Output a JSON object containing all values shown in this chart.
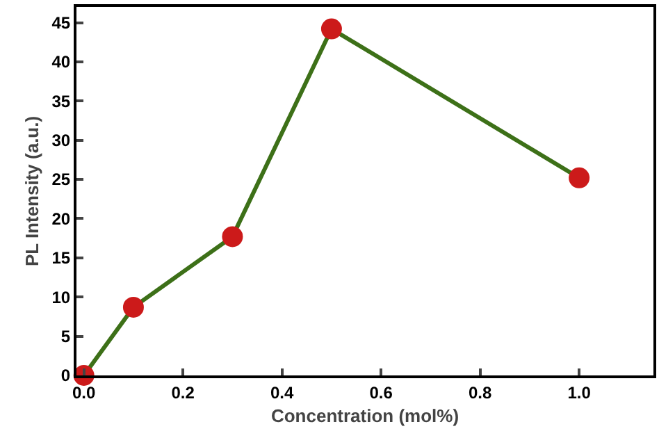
{
  "chart_data": {
    "type": "line",
    "xlabel": "Concentration (mol%)",
    "ylabel": "PL Intensity (a.u.)",
    "x": [
      0,
      0.1,
      0.3,
      0.5,
      1.0
    ],
    "series": [
      {
        "color": "#3d7018",
        "colors": [
          "#cc1a1a",
          "#cc1a1a",
          "#cc1a1a",
          "#cc1a1a",
          "#cc1a1a"
        ],
        "values": [
          0,
          8.7,
          17.7,
          44.2,
          25.2
        ]
      }
    ],
    "xlim": [
      -0.015,
      1.15
    ],
    "xticks": [
      {
        "value": 0,
        "label": "0.0"
      },
      0.2,
      0.4,
      0.6,
      0.8,
      {
        "value": 1.0,
        "label": "1.0"
      }
    ],
    "ylim": [
      0,
      47
    ],
    "yticks": [
      0,
      5,
      10,
      15,
      20,
      25,
      30,
      35,
      40,
      45
    ],
    "marker": "circle",
    "line_style": "solid",
    "grid": false
  }
}
